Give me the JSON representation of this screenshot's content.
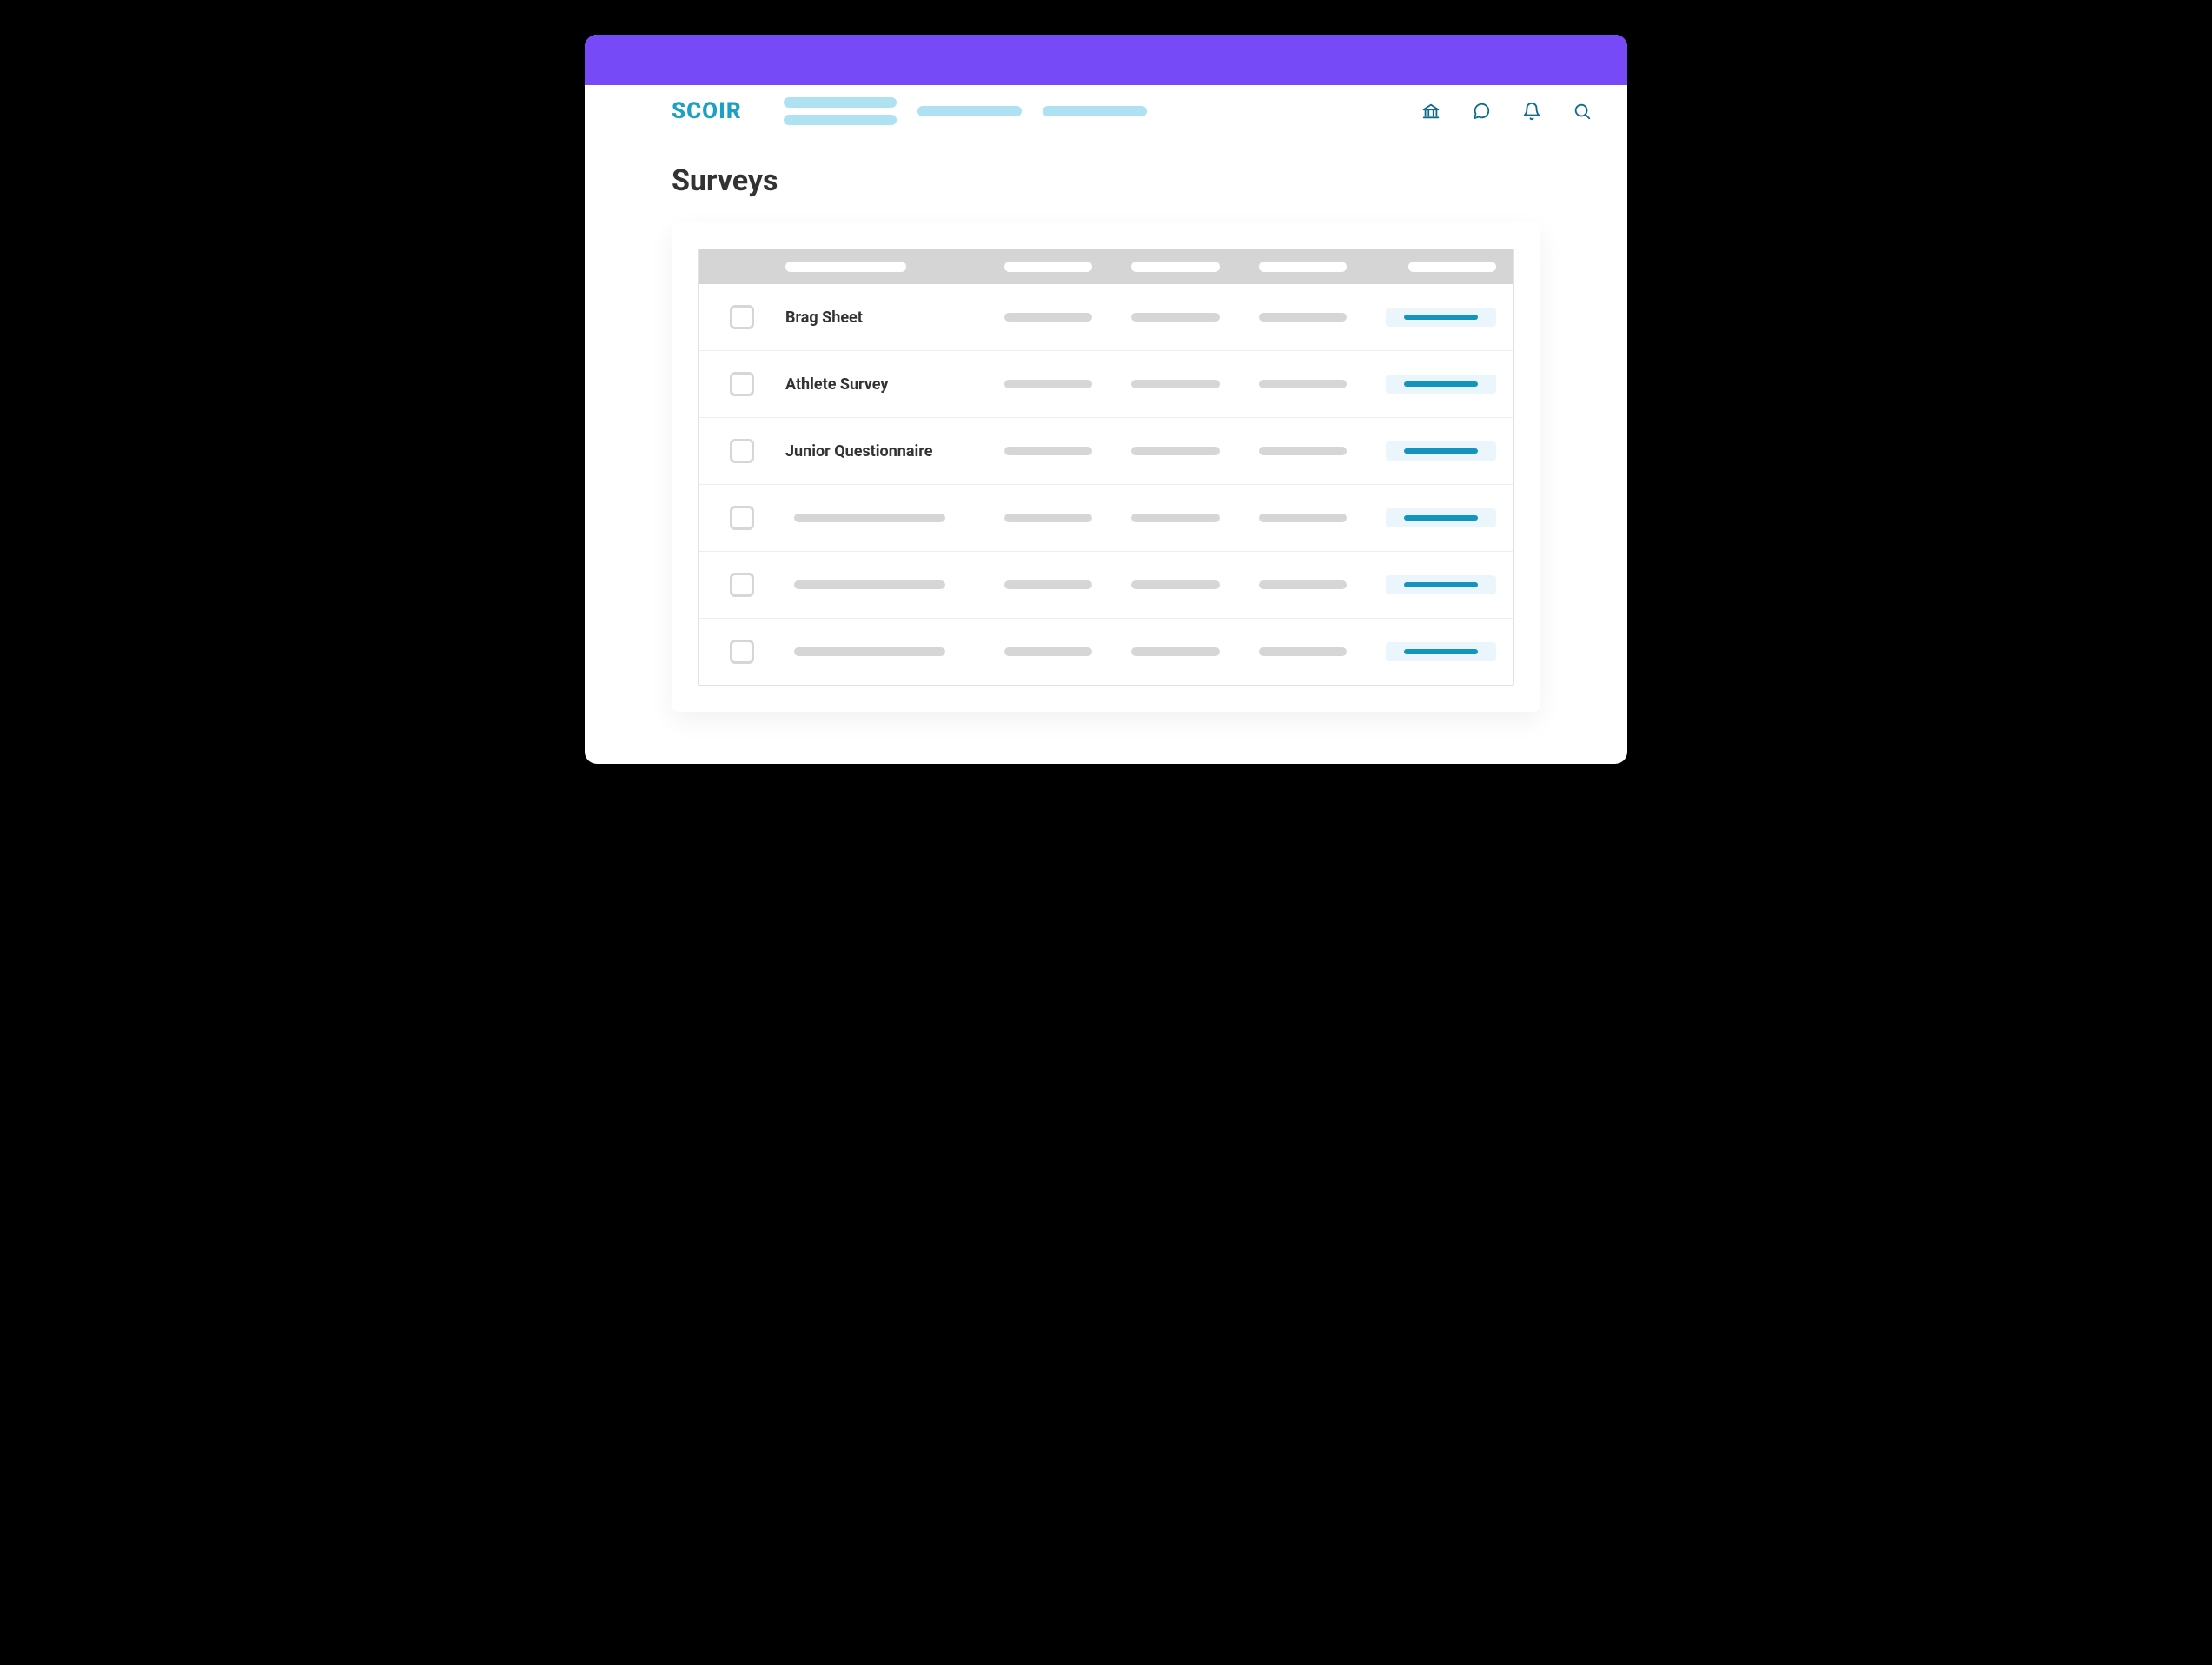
{
  "brand": {
    "name": "SCOIR",
    "color": "#1E9FC4"
  },
  "colors": {
    "topbar": "#764AF6",
    "navPlaceholder": "#AEE2F2",
    "iconColor": "#0C6B8F",
    "pageTitle": "#333333",
    "tableHeaderBg": "#D5D5D5",
    "rowBorder": "#EEEEEE",
    "greyPlaceholder": "#D6D6D6",
    "actionPillBg": "#EAF6FB",
    "actionLine": "#1294BF",
    "checkboxBorder": "#D6D6D6"
  },
  "page": {
    "title": "Surveys"
  },
  "nav": {
    "placeholders": [
      {
        "type": "stacked",
        "widths": [
          130,
          130
        ]
      },
      {
        "type": "single",
        "width": 120
      },
      {
        "type": "single",
        "width": 120
      }
    ],
    "icons": [
      "institution",
      "chat",
      "bell",
      "search"
    ]
  },
  "table": {
    "headerPlaceholders": 5,
    "rows": [
      {
        "title": "Brag Sheet",
        "placeholder": false
      },
      {
        "title": "Athlete Survey",
        "placeholder": false
      },
      {
        "title": "Junior Questionnaire",
        "placeholder": false
      },
      {
        "title": "",
        "placeholder": true
      },
      {
        "title": "",
        "placeholder": true
      },
      {
        "title": "",
        "placeholder": true
      }
    ]
  }
}
